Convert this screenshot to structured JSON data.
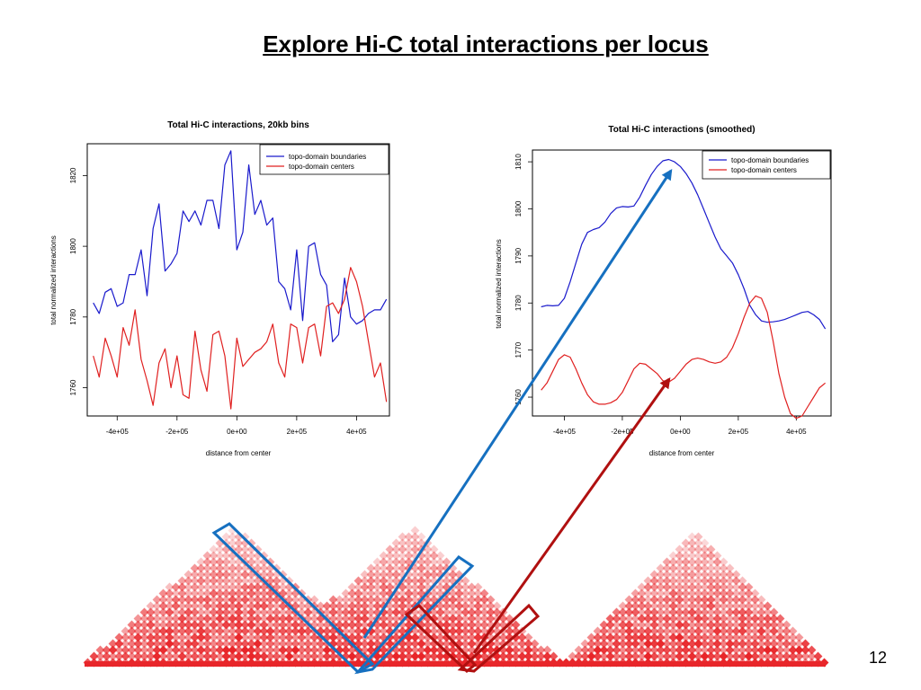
{
  "slide": {
    "title": "Explore Hi-C total interactions per locus",
    "page_number": "12"
  },
  "colors": {
    "boundaries": "#1a1acc",
    "centers": "#e02020",
    "blue_overlay": "#1670c0",
    "red_overlay": "#b01010",
    "heatmap": "#e8262a"
  },
  "chart_data": [
    {
      "type": "line",
      "title": "Total Hi-C interactions, 20kb bins",
      "xlabel": "distance from center",
      "ylabel": "total normalized interactions",
      "xlim": [
        -500000,
        510000
      ],
      "ylim": [
        1752,
        1829
      ],
      "xticks": [
        -400000,
        -200000,
        0,
        200000,
        400000
      ],
      "xtick_labels": [
        "-4e+05",
        "-2e+05",
        "0e+00",
        "2e+05",
        "4e+05"
      ],
      "yticks": [
        1760,
        1780,
        1800,
        1820
      ],
      "legend_position": "top-right",
      "x": [
        -480000,
        -460000,
        -440000,
        -420000,
        -400000,
        -380000,
        -360000,
        -340000,
        -320000,
        -300000,
        -280000,
        -260000,
        -240000,
        -220000,
        -200000,
        -180000,
        -160000,
        -140000,
        -120000,
        -100000,
        -80000,
        -60000,
        -40000,
        -20000,
        0,
        20000,
        40000,
        60000,
        80000,
        100000,
        120000,
        140000,
        160000,
        180000,
        200000,
        220000,
        240000,
        260000,
        280000,
        300000,
        320000,
        340000,
        360000,
        380000,
        400000,
        420000,
        440000,
        460000,
        480000,
        500000
      ],
      "series": [
        {
          "name": "topo-domain boundaries",
          "color_key": "boundaries",
          "values": [
            1784,
            1781,
            1787,
            1788,
            1783,
            1784,
            1792,
            1792,
            1799,
            1786,
            1805,
            1812,
            1793,
            1795,
            1798,
            1810,
            1807,
            1810,
            1806,
            1813,
            1813,
            1805,
            1823,
            1827,
            1799,
            1804,
            1823,
            1809,
            1813,
            1806,
            1808,
            1790,
            1788,
            1782,
            1799,
            1779,
            1800,
            1801,
            1792,
            1789,
            1773,
            1775,
            1791,
            1780,
            1778,
            1779,
            1781,
            1782,
            1782,
            1785
          ]
        },
        {
          "name": "topo-domain centers",
          "color_key": "centers",
          "values": [
            1769,
            1763,
            1774,
            1769,
            1763,
            1777,
            1772,
            1782,
            1768,
            1762,
            1755,
            1767,
            1771,
            1760,
            1769,
            1758,
            1757,
            1776,
            1765,
            1759,
            1775,
            1776,
            1769,
            1754,
            1774,
            1766,
            1768,
            1770,
            1771,
            1773,
            1778,
            1767,
            1763,
            1778,
            1777,
            1767,
            1777,
            1778,
            1769,
            1783,
            1784,
            1781,
            1785,
            1794,
            1790,
            1783,
            1773,
            1763,
            1767,
            1756
          ]
        }
      ]
    },
    {
      "type": "line",
      "title": "Total Hi-C interactions (smoothed)",
      "xlabel": "distance from center",
      "ylabel": "total normalized interactions",
      "xlim": [
        -510000,
        520000
      ],
      "ylim": [
        1756,
        1812.5
      ],
      "xticks": [
        -400000,
        -200000,
        0,
        200000,
        400000
      ],
      "xtick_labels": [
        "-4e+05",
        "-2e+05",
        "0e+00",
        "2e+05",
        "4e+05"
      ],
      "yticks": [
        1760,
        1770,
        1780,
        1790,
        1800,
        1810
      ],
      "legend_position": "top-right",
      "x": [
        -480000,
        -460000,
        -440000,
        -420000,
        -400000,
        -380000,
        -360000,
        -340000,
        -320000,
        -300000,
        -280000,
        -260000,
        -240000,
        -220000,
        -200000,
        -180000,
        -160000,
        -140000,
        -120000,
        -100000,
        -80000,
        -60000,
        -40000,
        -20000,
        0,
        20000,
        40000,
        60000,
        80000,
        100000,
        120000,
        140000,
        160000,
        180000,
        200000,
        220000,
        240000,
        260000,
        280000,
        300000,
        320000,
        340000,
        360000,
        380000,
        400000,
        420000,
        440000,
        460000,
        480000,
        500000
      ],
      "series": [
        {
          "name": "topo-domain boundaries",
          "color_key": "boundaries",
          "values": [
            1779.2,
            1779.5,
            1779.4,
            1779.5,
            1781.0,
            1784.5,
            1788.5,
            1792.5,
            1795.0,
            1795.6,
            1796.0,
            1797.2,
            1799.0,
            1800.2,
            1800.5,
            1800.4,
            1800.6,
            1802.5,
            1805.0,
            1807.3,
            1809.0,
            1810.2,
            1810.5,
            1810.0,
            1809.0,
            1807.5,
            1805.5,
            1803.0,
            1800.0,
            1797.0,
            1794.0,
            1791.5,
            1790.0,
            1788.5,
            1786.0,
            1783.0,
            1779.5,
            1777.5,
            1776.2,
            1775.9,
            1776.0,
            1776.2,
            1776.5,
            1777.0,
            1777.5,
            1778.0,
            1778.2,
            1777.5,
            1776.5,
            1774.5
          ]
        },
        {
          "name": "topo-domain centers",
          "color_key": "centers",
          "values": [
            1761.5,
            1763.0,
            1765.5,
            1768.0,
            1769.0,
            1768.5,
            1766.0,
            1763.0,
            1760.5,
            1759.0,
            1758.5,
            1758.5,
            1758.8,
            1759.5,
            1761.0,
            1763.5,
            1766.0,
            1767.2,
            1767.0,
            1766.0,
            1765.0,
            1763.5,
            1763.2,
            1764.0,
            1765.5,
            1767.0,
            1768.0,
            1768.3,
            1768.0,
            1767.5,
            1767.2,
            1767.5,
            1768.5,
            1770.5,
            1773.5,
            1777.0,
            1780.0,
            1781.5,
            1781.0,
            1778.0,
            1772.0,
            1765.0,
            1760.0,
            1756.5,
            1755.5,
            1756.0,
            1758.0,
            1760.0,
            1762.0,
            1763.0
          ]
        }
      ]
    }
  ]
}
